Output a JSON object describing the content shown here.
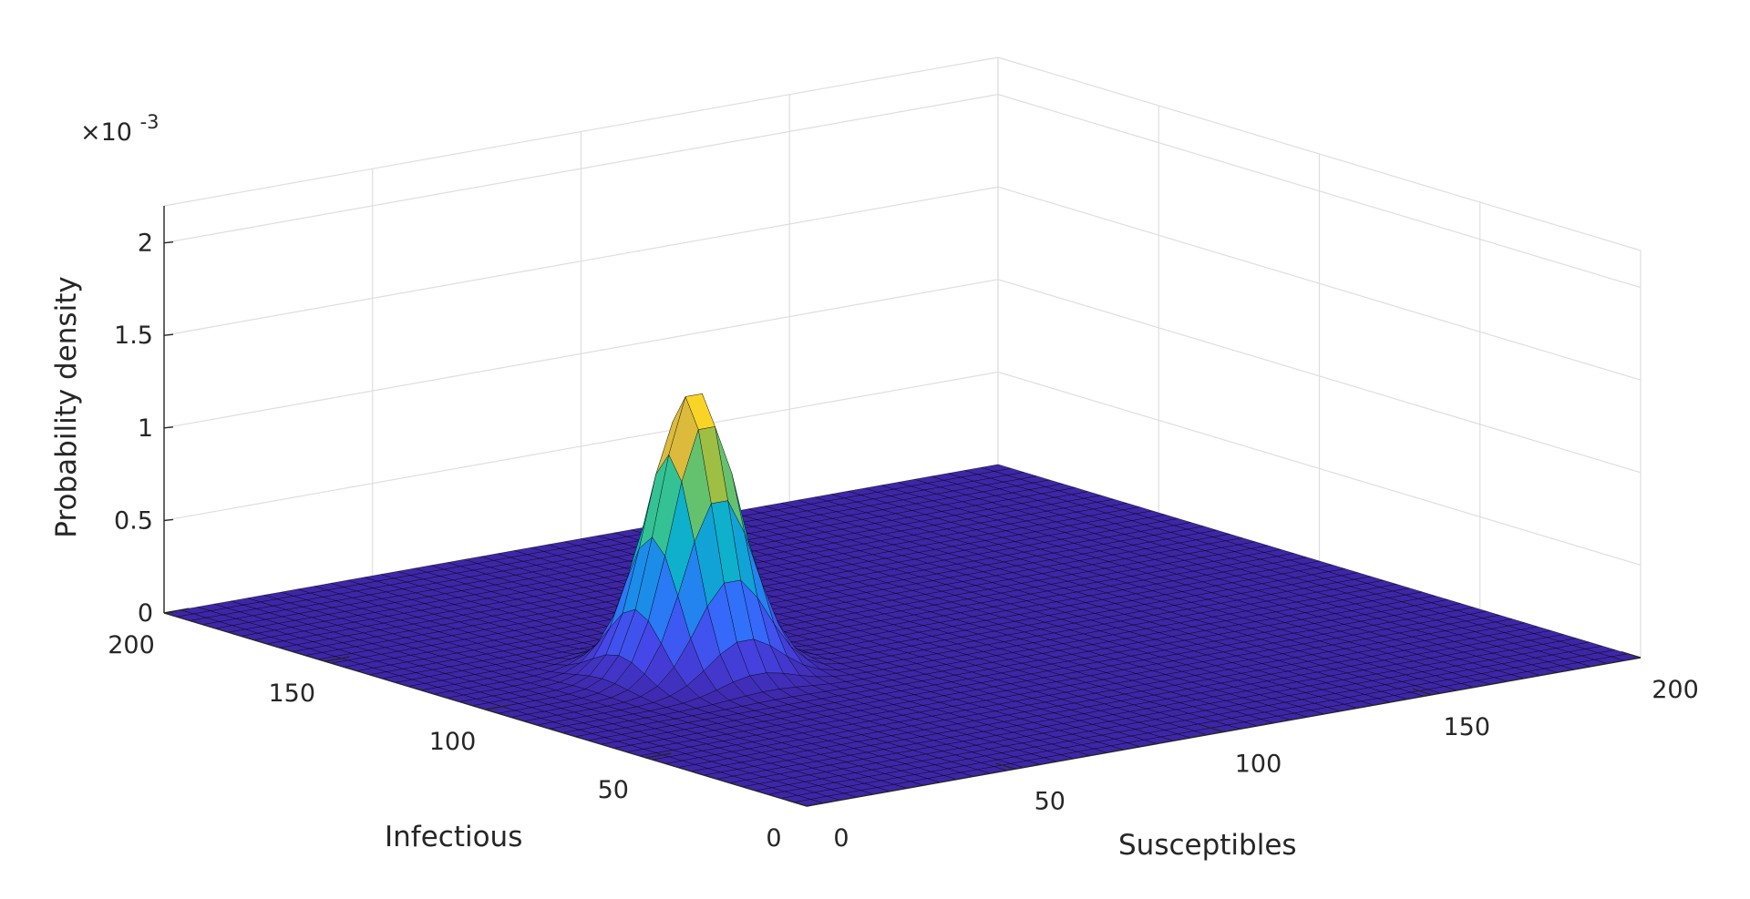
{
  "chart_data": {
    "type": "surface",
    "title": "",
    "xlabel": "Susceptibles",
    "ylabel": "Infectious",
    "zlabel": "Probability density",
    "z_exponent_label": {
      "base": "×10",
      "exponent": "-3"
    },
    "xlim": [
      0,
      200
    ],
    "ylim": [
      0,
      200
    ],
    "zlim": [
      0,
      0.0022
    ],
    "x_ticks": [
      "0",
      "50",
      "100",
      "150",
      "200"
    ],
    "y_ticks": [
      "0",
      "50",
      "100",
      "150",
      "200"
    ],
    "z_ticks": [
      "0",
      "0.5",
      "1",
      "1.5",
      "2"
    ],
    "grid": true,
    "colormap": "parula",
    "colors": {
      "low": "#3e26a8",
      "mid": "#1fb0b4",
      "high": "#f9d52e",
      "edge": "#000000",
      "grid": "#dedede",
      "axis": "#262626"
    },
    "peak": {
      "x": 50,
      "y": 100,
      "z": 0.00154
    },
    "spread": {
      "sigma_x": 8.5,
      "sigma_y": 8.5
    },
    "mesh_step": 4
  }
}
